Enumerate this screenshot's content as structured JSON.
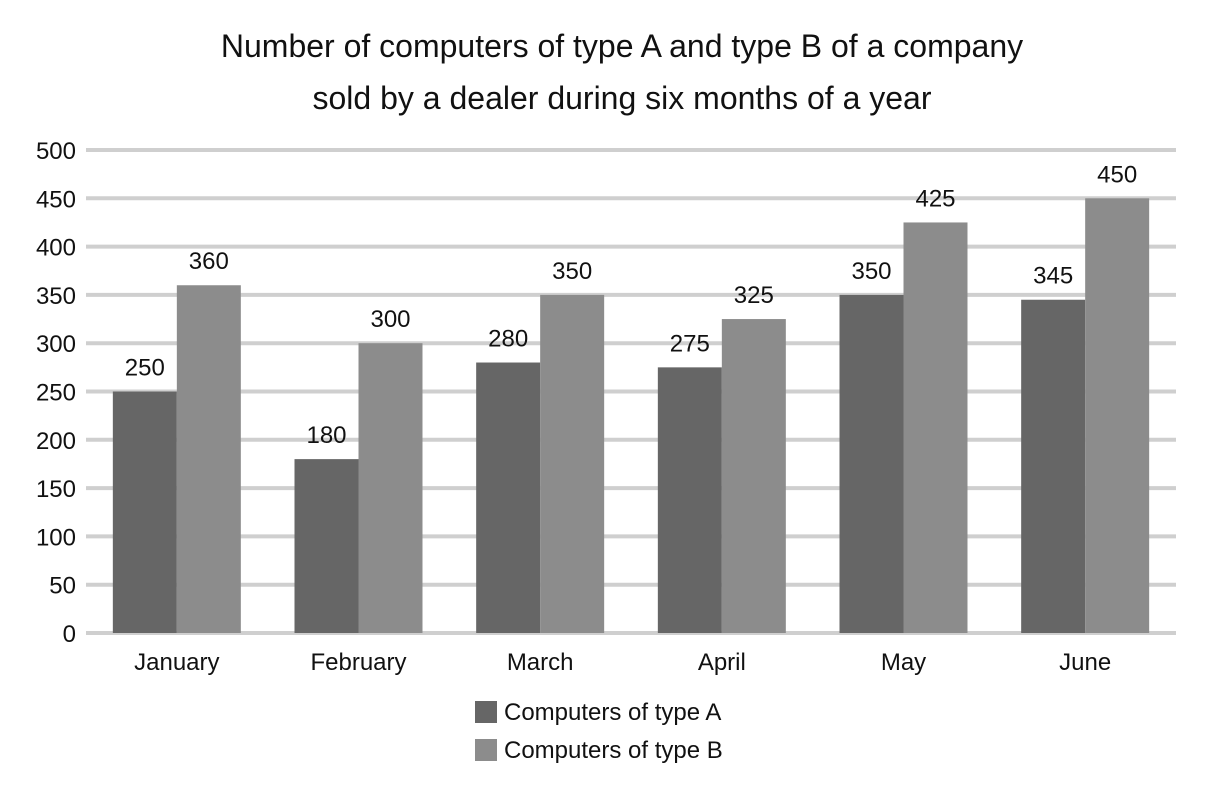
{
  "chart_data": {
    "type": "bar",
    "title": "Number of computers of type A and type B of a company sold by a dealer during six months of a year",
    "title_lines": [
      "Number of computers of type A and type B of a company",
      "sold by a dealer during six months of a year"
    ],
    "xlabel": "",
    "ylabel": "",
    "categories": [
      "January",
      "February",
      "March",
      "April",
      "May",
      "June"
    ],
    "series": [
      {
        "name": "Computers of type A",
        "values": [
          250,
          180,
          280,
          275,
          350,
          345
        ],
        "color": "#666666"
      },
      {
        "name": "Computers of type B",
        "values": [
          360,
          300,
          350,
          325,
          425,
          450
        ],
        "color": "#8c8c8c"
      }
    ],
    "ylim": [
      0,
      500
    ],
    "yticks": [
      0,
      50,
      100,
      150,
      200,
      250,
      300,
      350,
      400,
      450,
      500
    ],
    "grid": true,
    "legend_position": "bottom"
  }
}
